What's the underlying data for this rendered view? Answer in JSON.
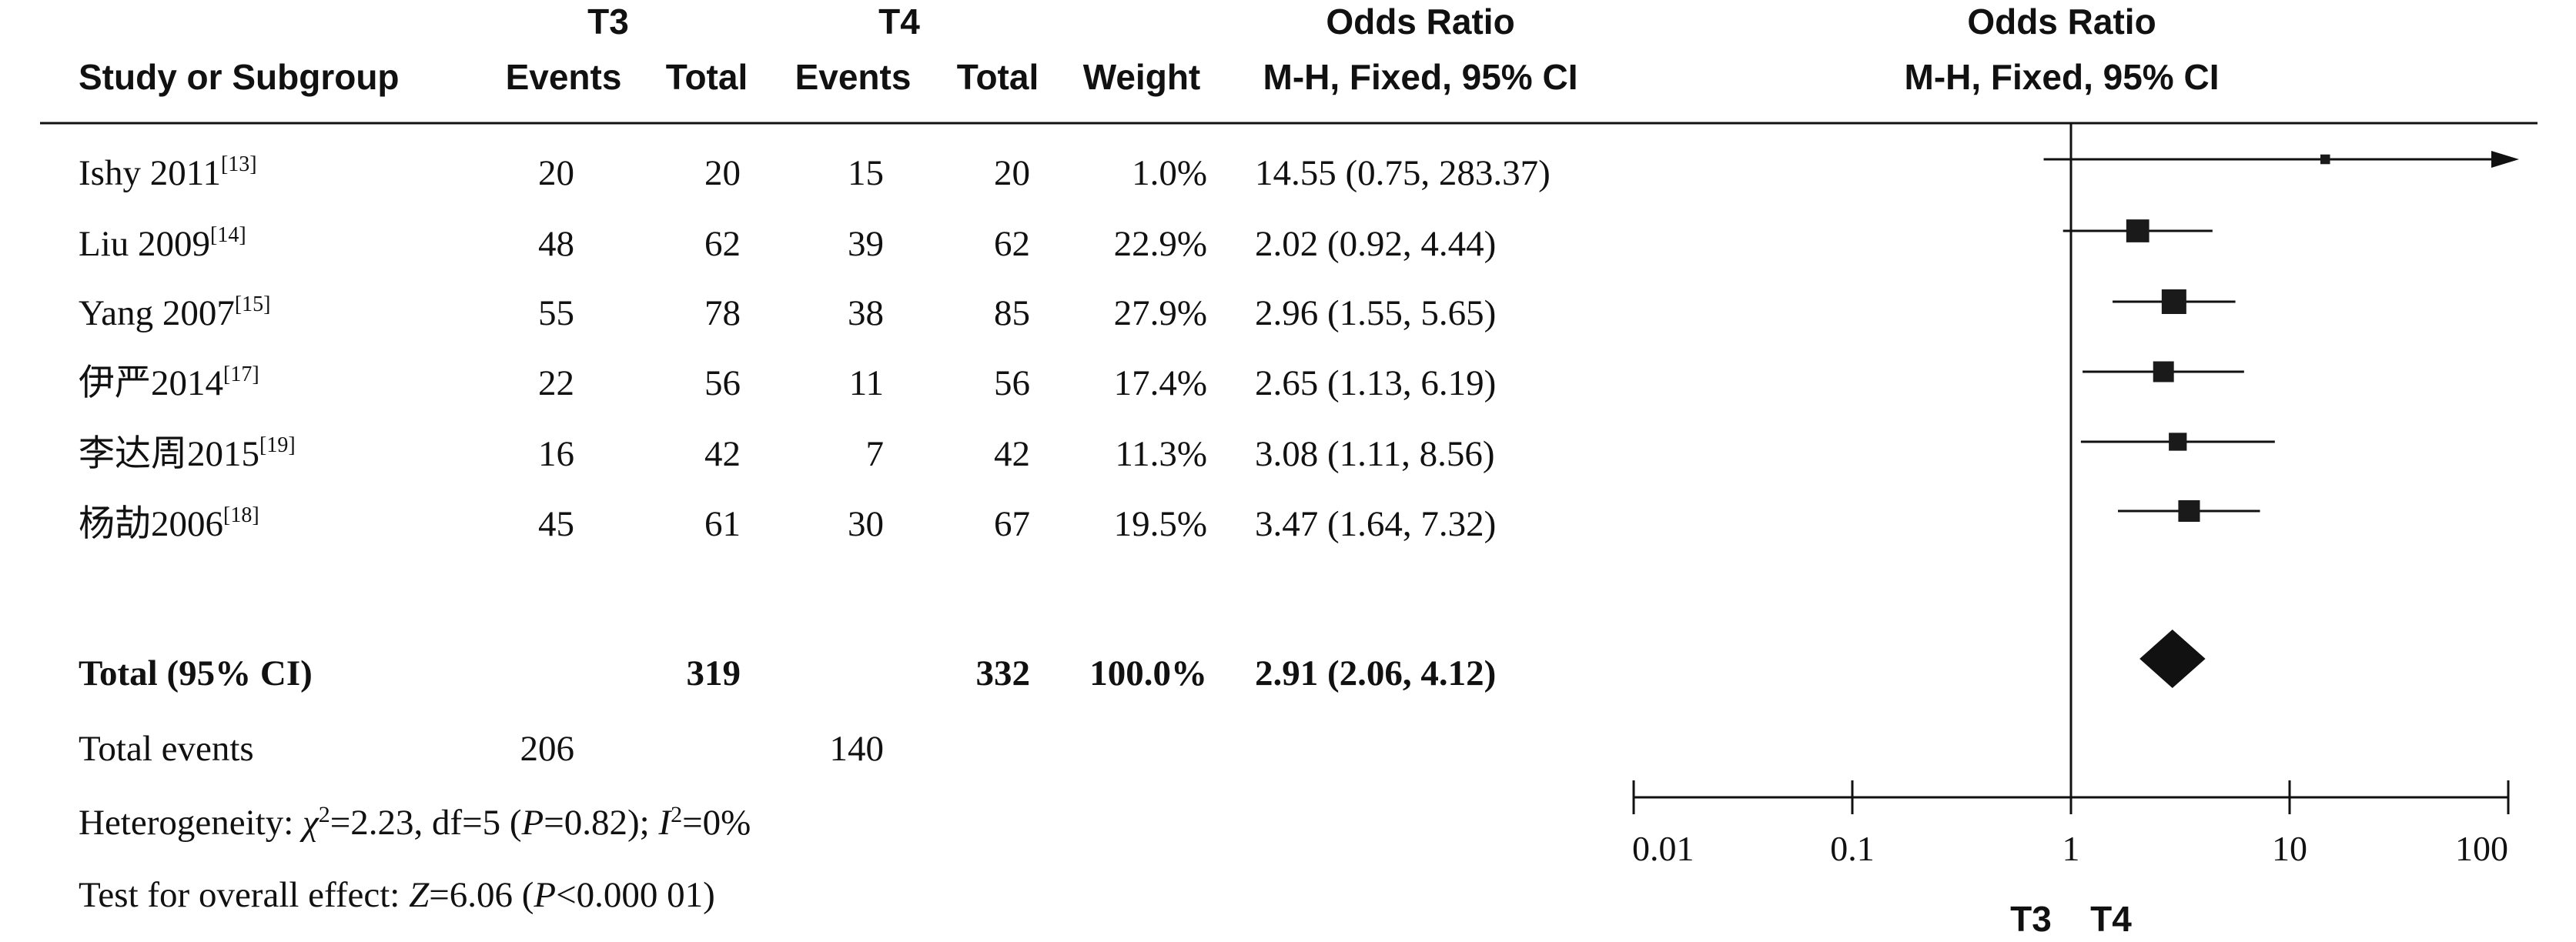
{
  "chart_data": {
    "type": "forest",
    "header": {
      "group1": "T3",
      "group2": "T4",
      "study": "Study or Subgroup",
      "events": "Events",
      "total": "Total",
      "weight": "Weight",
      "or_title": "Odds Ratio",
      "or_method": "M-H, Fixed, 95% CI",
      "plot_title": "Odds Ratio",
      "plot_method": "M-H, Fixed, 95% CI"
    },
    "studies": [
      {
        "name": "Ishy 2011",
        "ref": "[13]",
        "e1": "20",
        "n1": "20",
        "e2": "15",
        "n2": "20",
        "weight": "1.0%",
        "or_text": "14.55 (0.75, 283.37)",
        "or": 14.55,
        "lo": 0.75,
        "hi": 283.37,
        "w": 1.0
      },
      {
        "name": "Liu 2009",
        "ref": "[14]",
        "e1": "48",
        "n1": "62",
        "e2": "39",
        "n2": "62",
        "weight": "22.9%",
        "or_text": "2.02 (0.92, 4.44)",
        "or": 2.02,
        "lo": 0.92,
        "hi": 4.44,
        "w": 22.9
      },
      {
        "name": "Yang 2007",
        "ref": "[15]",
        "e1": "55",
        "n1": "78",
        "e2": "38",
        "n2": "85",
        "weight": "27.9%",
        "or_text": "2.96 (1.55, 5.65)",
        "or": 2.96,
        "lo": 1.55,
        "hi": 5.65,
        "w": 27.9
      },
      {
        "name": "伊严2014",
        "ref": "[17]",
        "e1": "22",
        "n1": "56",
        "e2": "11",
        "n2": "56",
        "weight": "17.4%",
        "or_text": "2.65 (1.13, 6.19)",
        "or": 2.65,
        "lo": 1.13,
        "hi": 6.19,
        "w": 17.4
      },
      {
        "name": "李达周2015",
        "ref": "[19]",
        "e1": "16",
        "n1": "42",
        "e2": "7",
        "n2": "42",
        "weight": "11.3%",
        "or_text": "3.08 (1.11, 8.56)",
        "or": 3.08,
        "lo": 1.11,
        "hi": 8.56,
        "w": 11.3
      },
      {
        "name": "杨劼2006",
        "ref": "[18]",
        "e1": "45",
        "n1": "61",
        "e2": "30",
        "n2": "67",
        "weight": "19.5%",
        "or_text": "3.47 (1.64, 7.32)",
        "or": 3.47,
        "lo": 1.64,
        "hi": 7.32,
        "w": 19.5
      }
    ],
    "total": {
      "label": "Total (95% CI)",
      "n1": "319",
      "n2": "332",
      "weight": "100.0%",
      "or_text": "2.91 (2.06, 4.12)",
      "or": 2.91,
      "lo": 2.06,
      "hi": 4.12
    },
    "total_events": {
      "label": "Total events",
      "e1": "206",
      "e2": "140"
    },
    "heterogeneity": {
      "label": "Heterogeneity: ",
      "chi": "χ",
      "chi_val": "=2.23, df=5 (",
      "p": "P",
      "p_val": "=0.82); ",
      "i": "I",
      "i_val": "=0%"
    },
    "overall_effect": {
      "label": "Test for overall effect: ",
      "z": "Z",
      "z_val": "=6.06 (",
      "p": "P",
      "p_val": "<0.000 01)"
    },
    "x_axis": {
      "scale": "log",
      "range": [
        0.01,
        100
      ],
      "ticks": [
        0.01,
        0.1,
        1,
        10,
        100
      ],
      "tick_labels": [
        "0.01",
        "0.1",
        "1",
        "10",
        "100"
      ],
      "footer_left": "T3",
      "footer_right": "T4"
    }
  }
}
